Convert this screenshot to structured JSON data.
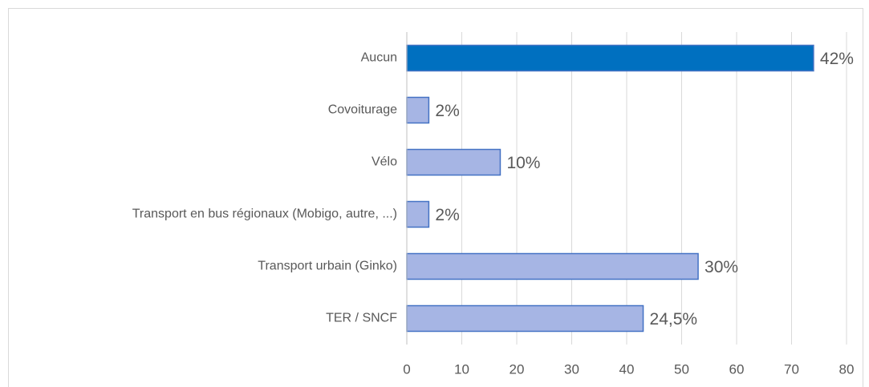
{
  "chart_data": {
    "type": "bar",
    "orientation": "horizontal",
    "categories": [
      "Aucun",
      "Covoiturage",
      "Vélo",
      "Transport en bus régionaux (Mobigo, autre, ...)",
      "Transport urbain (Ginko)",
      "TER / SNCF"
    ],
    "values": [
      74,
      4,
      17,
      4,
      53,
      43
    ],
    "value_labels": [
      "42%",
      "2%",
      "10%",
      "2%",
      "30%",
      "24,5%"
    ],
    "colors": [
      "#0070c0",
      "#a6b5e4",
      "#a6b5e4",
      "#a6b5e4",
      "#a6b5e4",
      "#a6b5e4"
    ],
    "edge_color": "#4472c4",
    "xlim": [
      0,
      80
    ],
    "xticks": [
      0,
      10,
      20,
      30,
      40,
      50,
      60,
      70,
      80
    ],
    "grid": true
  }
}
